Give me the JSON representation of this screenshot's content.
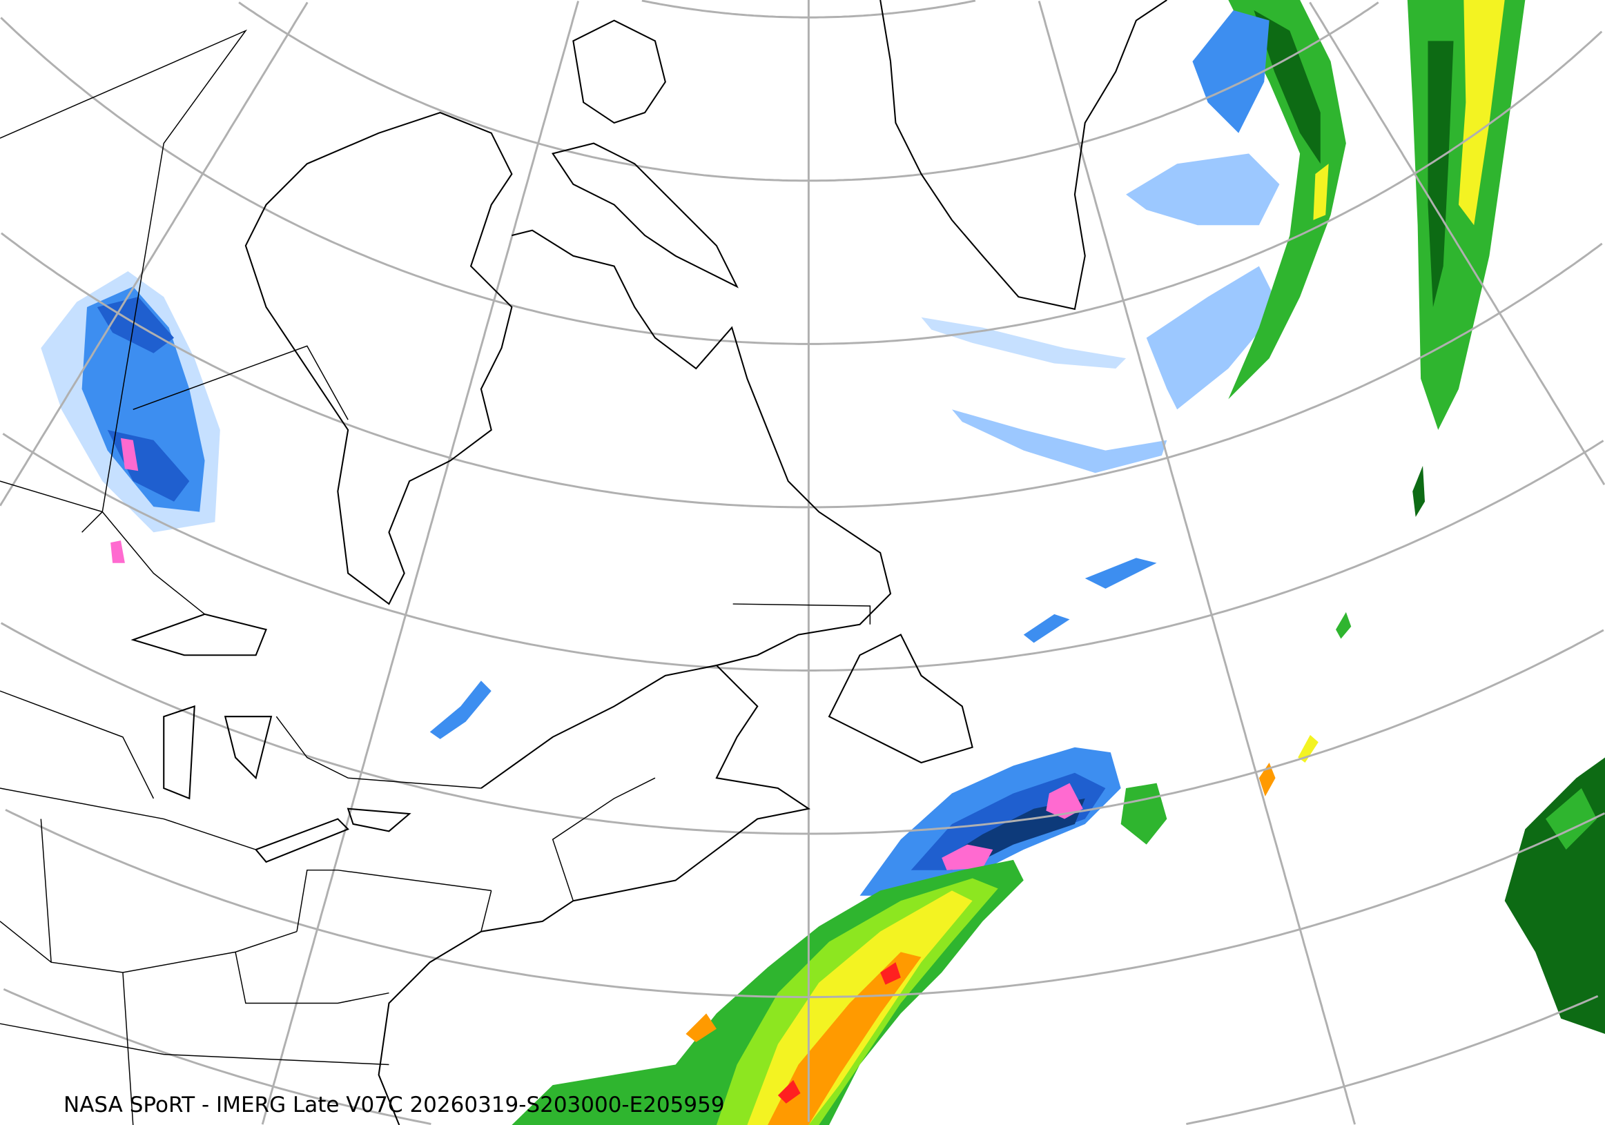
{
  "caption": "NASA SPoRT - IMERG Late V07C 20260319-S203000-E205959",
  "product": "IMERG Late V07C",
  "colors": {
    "graticule": "#b0b0b0",
    "coastline": "#000000",
    "precip_light_blue": "#c6e0ff",
    "precip_blue": "#3d8ef0",
    "precip_dark_blue": "#1f5fcf",
    "precip_navy": "#0d3a7a",
    "precip_pink": "#ff6ad0",
    "precip_dark_green": "#0d6b14",
    "precip_green": "#2fb52f",
    "precip_light_green": "#8de620",
    "precip_yellow": "#f3f322",
    "precip_orange": "#ff9a00",
    "precip_red": "#ff2020"
  }
}
